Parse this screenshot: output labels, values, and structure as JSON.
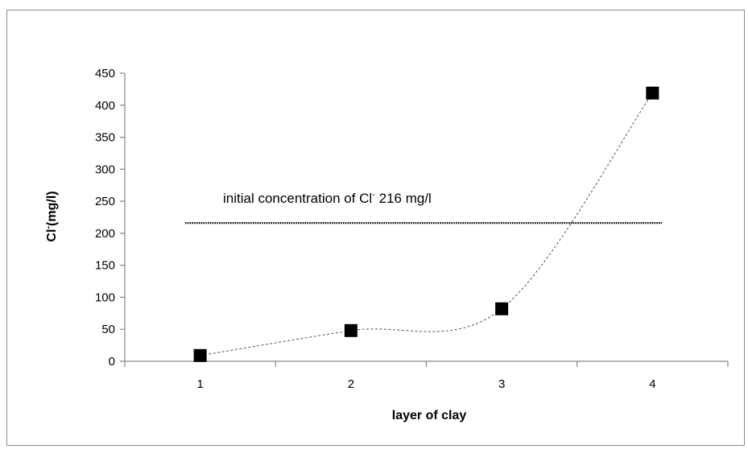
{
  "chart_data": {
    "type": "line",
    "title": "",
    "xlabel": "layer of clay",
    "ylabel_main": "Cl",
    "ylabel_super": "-",
    "ylabel_rest": "(mg/l)",
    "x": [
      1,
      2,
      3,
      4
    ],
    "x_tick_labels": [
      "1",
      "2",
      "3",
      "4"
    ],
    "series": [
      {
        "values": [
          9,
          48,
          82,
          419
        ]
      }
    ],
    "y_ticks": [
      0,
      50,
      100,
      150,
      200,
      250,
      300,
      350,
      400,
      450
    ],
    "ylim": [
      0,
      450
    ],
    "reference_line": {
      "value": 216,
      "style": "dotted"
    },
    "annotation": {
      "text_main": "initial concentration of Cl",
      "text_super": "-",
      "text_rest": " 216 mg/l"
    },
    "grid": false,
    "legend": "none",
    "colors": {
      "marker": "#000000",
      "line": "#555555",
      "axis": "#868686"
    }
  }
}
